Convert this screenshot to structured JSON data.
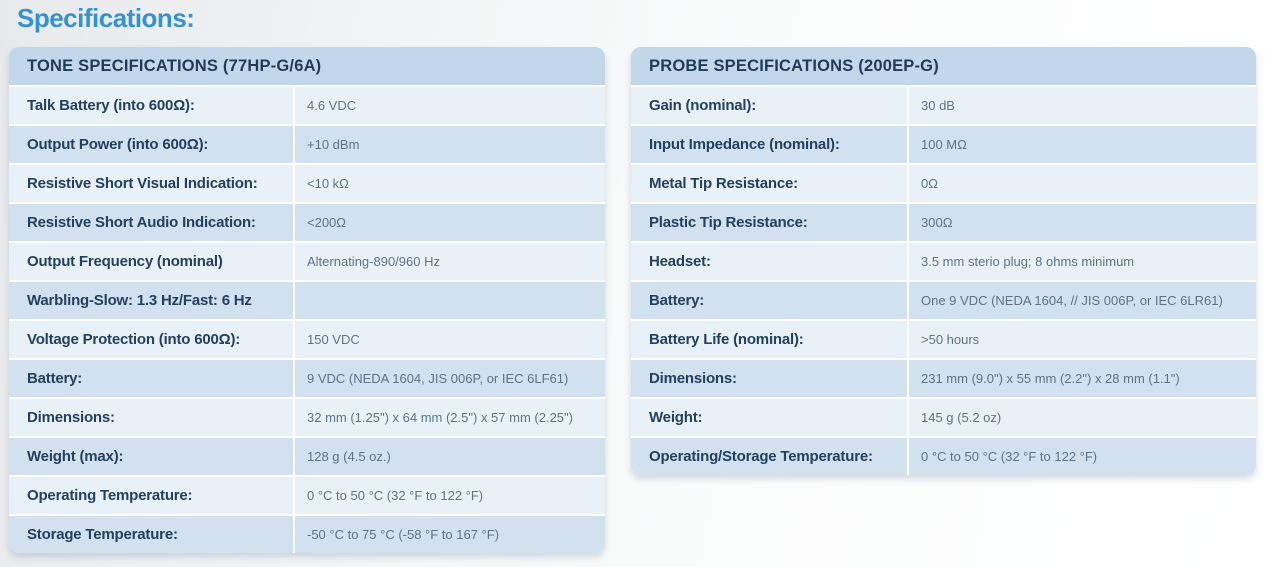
{
  "page": {
    "heading": "Specifications:"
  },
  "tables": [
    {
      "id": "tone",
      "title": "TONE SPECIFICATIONS (77HP-G/6A)",
      "rows": [
        {
          "label": "Talk Battery (into 600Ω):",
          "value": "4.6 VDC"
        },
        {
          "label": "Output Power (into 600Ω):",
          "value": "+10 dBm"
        },
        {
          "label": "Resistive Short Visual Indication:",
          "value": "<10 kΩ"
        },
        {
          "label": "Resistive Short Audio Indication:",
          "value": "<200Ω"
        },
        {
          "label": "Output Frequency (nominal)",
          "value": "Alternating-890/960 Hz"
        },
        {
          "label": "Warbling-Slow: 1.3 Hz/Fast: 6 Hz",
          "value": ""
        },
        {
          "label": "Voltage Protection (into 600Ω):",
          "value": "150 VDC"
        },
        {
          "label": "Battery:",
          "value": "9 VDC (NEDA 1604, JIS 006P, or IEC 6LF61)"
        },
        {
          "label": "Dimensions:",
          "value": "32 mm (1.25\") x 64 mm (2.5\") x 57 mm (2.25\")"
        },
        {
          "label": "Weight (max):",
          "value": "128 g (4.5 oz.)"
        },
        {
          "label": "Operating Temperature:",
          "value": "0 °C to 50 °C (32 °F to 122 °F)"
        },
        {
          "label": "Storage Temperature:",
          "value": "-50 °C to 75 °C (-58 °F to 167 °F)"
        }
      ]
    },
    {
      "id": "probe",
      "title": "PROBE SPECIFICATIONS (200EP-G)",
      "rows": [
        {
          "label": "Gain (nominal):",
          "value": "30 dB"
        },
        {
          "label": "Input Impedance (nominal):",
          "value": "100 MΩ"
        },
        {
          "label": "Metal Tip Resistance:",
          "value": "0Ω"
        },
        {
          "label": "Plastic Tip Resistance:",
          "value": "300Ω"
        },
        {
          "label": "Headset:",
          "value": "3.5 mm sterio plug; 8 ohms minimum"
        },
        {
          "label": "Battery:",
          "value": "One 9 VDC (NEDA 1604, // JIS 006P, or IEC 6LR61)"
        },
        {
          "label": "Battery Life (nominal):",
          "value": ">50 hours"
        },
        {
          "label": "Dimensions:",
          "value": "231 mm (9.0\") x 55 mm (2.2\") x 28 mm (1.1\")"
        },
        {
          "label": "Weight:",
          "value": "145 g (5.2 oz)"
        },
        {
          "label": "Operating/Storage Temperature:",
          "value": "0 °C to 50 °C (32 °F to 122 °F)"
        }
      ]
    }
  ],
  "colors": {
    "heading_blue": "#3492cd",
    "header_bar": "#c2d7ea",
    "header_text": "#1e3c5a",
    "row_light": "#e9f1f8",
    "row_dark": "#d2e1f0",
    "label_text": "#22415e",
    "value_text": "#5c7388",
    "row_divider": "#ffffff"
  }
}
